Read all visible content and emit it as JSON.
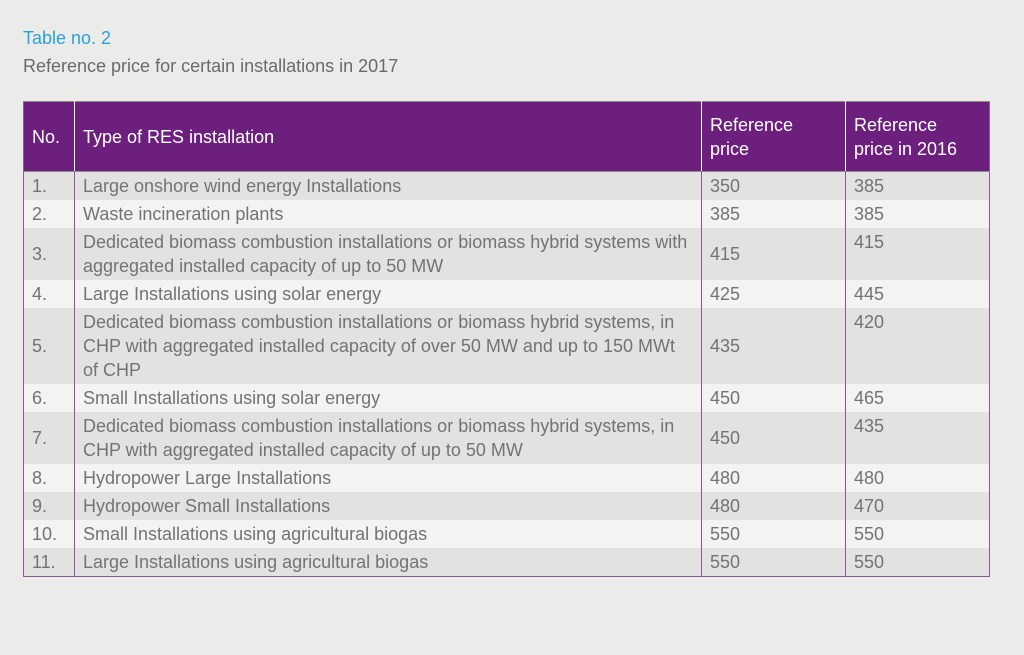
{
  "caption": {
    "label": "Table no. 2",
    "title": "Reference price for certain installations in 2017"
  },
  "table": {
    "headers": [
      "No.",
      "Type of RES installation",
      "Reference price",
      "Reference price in 2016"
    ],
    "rows": [
      {
        "no": "1.",
        "type": "Large onshore wind energy Installations",
        "ref": "350",
        "ref2016": "385"
      },
      {
        "no": "2.",
        "type": "Waste incineration plants",
        "ref": "385",
        "ref2016": "385"
      },
      {
        "no": "3.",
        "type": "Dedicated biomass combustion installations or biomass hybrid systems with aggregated installed capacity of up to 50 MW",
        "ref": "415",
        "ref2016": "415"
      },
      {
        "no": "4.",
        "type": "Large Installations using solar energy",
        "ref": "425",
        "ref2016": "445"
      },
      {
        "no": "5.",
        "type": "Dedicated biomass combustion installations or biomass hybrid systems, in CHP with aggregated installed capacity of over 50 MW and up to 150 MWt of CHP",
        "ref": "435",
        "ref2016": "420"
      },
      {
        "no": "6.",
        "type": "Small Installations using solar energy",
        "ref": "450",
        "ref2016": "465"
      },
      {
        "no": "7.",
        "type": "Dedicated biomass combustion installations or biomass hybrid systems, in CHP with aggregated installed capacity of up to 50 MW",
        "ref": "450",
        "ref2016": "435"
      },
      {
        "no": "8.",
        "type": "Hydropower Large Installations",
        "ref": "480",
        "ref2016": "480"
      },
      {
        "no": "9.",
        "type": "Hydropower Small Installations",
        "ref": "480",
        "ref2016": "470"
      },
      {
        "no": "10.",
        "type": "Small Installations using agricultural biogas",
        "ref": "550",
        "ref2016": "550"
      },
      {
        "no": "11.",
        "type": "Large Installations using agricultural biogas",
        "ref": "550",
        "ref2016": "550"
      }
    ]
  }
}
